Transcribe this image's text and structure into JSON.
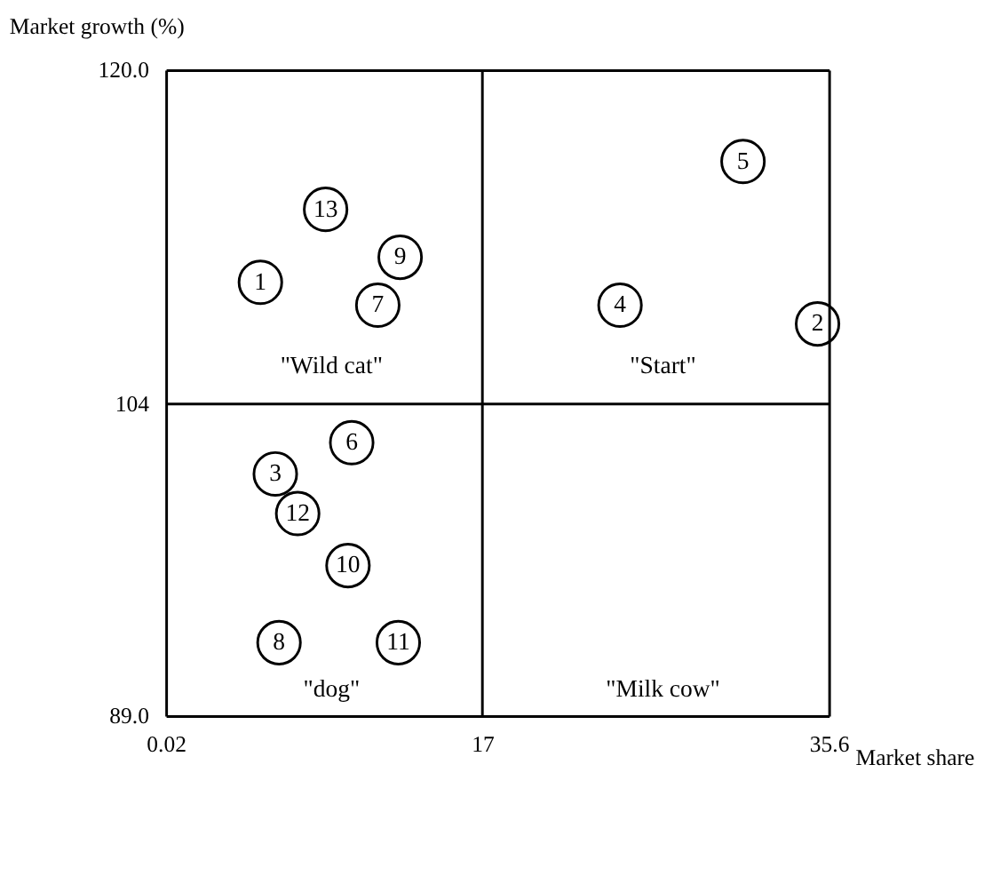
{
  "chart_data": {
    "type": "scatter",
    "xlabel": "Market share",
    "ylabel": "Market growth (%)",
    "x": [
      5.1,
      8.6,
      12.6,
      11.4,
      31.0,
      24.4,
      35.0,
      10.0,
      5.9,
      7.1,
      9.8,
      6.1,
      12.5
    ],
    "values": [
      109.8,
      113.3,
      111.0,
      108.7,
      115.6,
      108.7,
      107.8,
      102.1,
      100.6,
      98.7,
      96.2,
      92.5,
      92.5
    ],
    "color": "#000000",
    "marker": "circle",
    "xlim": [
      0.02,
      35.6
    ],
    "xticks": [
      0.02,
      17,
      35.6
    ],
    "ylim": [
      89,
      120
    ],
    "yticks": [
      {
        "value": 89,
        "label": "89.0"
      },
      104,
      {
        "value": 120,
        "label": "120.0"
      }
    ],
    "grid": true,
    "annotations": [
      {
        "text": "1",
        "x": 5.1,
        "y": 109.8
      },
      {
        "text": "13",
        "x": 8.6,
        "y": 113.3
      },
      {
        "text": "9",
        "x": 12.6,
        "y": 111.0
      },
      {
        "text": "7",
        "x": 11.4,
        "y": 108.7
      },
      {
        "text": "5",
        "x": 31.0,
        "y": 115.6
      },
      {
        "text": "4",
        "x": 24.4,
        "y": 108.7
      },
      {
        "text": "2",
        "x": 35.0,
        "y": 107.8
      },
      {
        "text": "6",
        "x": 10.0,
        "y": 102.1
      },
      {
        "text": "3",
        "x": 5.9,
        "y": 100.6
      },
      {
        "text": "12",
        "x": 7.1,
        "y": 98.7
      },
      {
        "text": "10",
        "x": 9.8,
        "y": 96.2
      },
      {
        "text": "8",
        "x": 6.1,
        "y": 92.5
      },
      {
        "text": "11",
        "x": 12.5,
        "y": 92.5
      },
      "\"Wild cat\"",
      "\"Start\"",
      "\"dog\"",
      "\"Milk cow\""
    ]
  }
}
